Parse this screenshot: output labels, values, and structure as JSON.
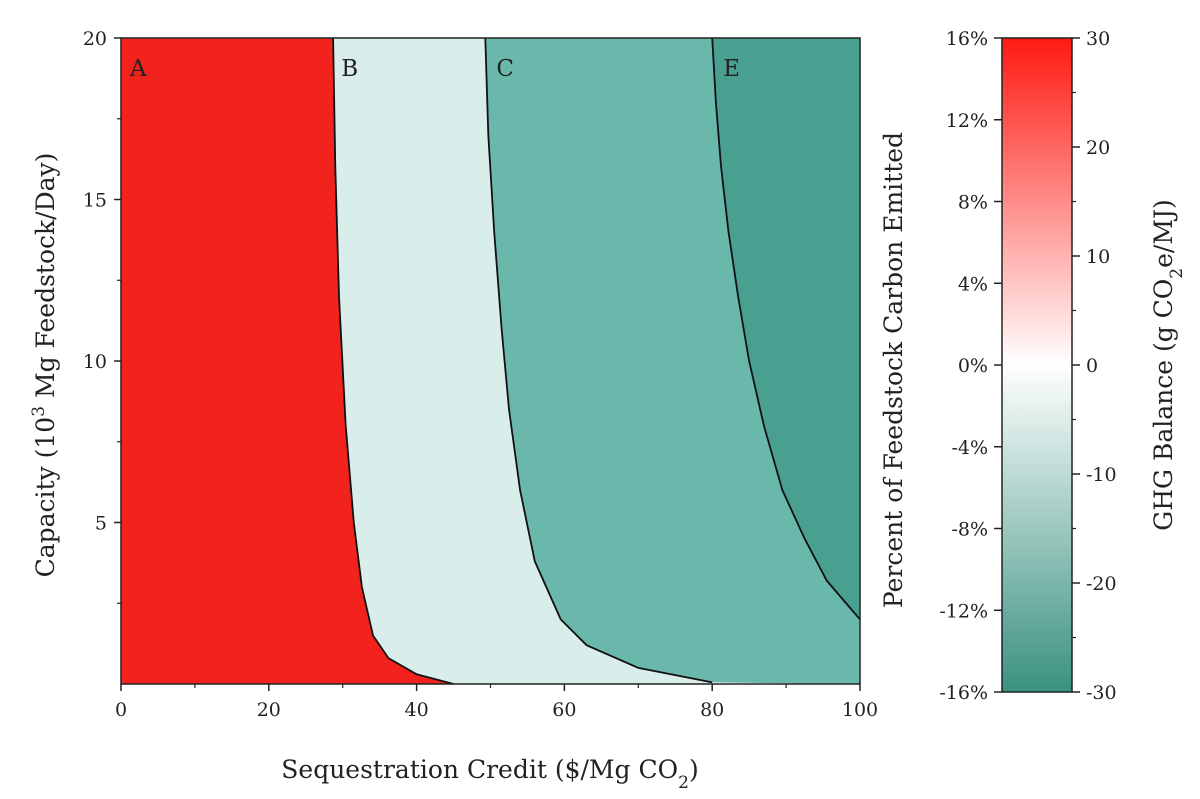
{
  "chart_data": {
    "type": "heatmap",
    "title": "",
    "xlabel_main": "Sequestration Credit ($/Mg CO",
    "xlabel_sub": "2",
    "xlabel_end": ")",
    "ylabel_main": "Capacity (10",
    "ylabel_sup": "3",
    "ylabel_end": " Mg Feedstock/Day)",
    "xlim": [
      0,
      100
    ],
    "ylim": [
      0,
      20
    ],
    "x_ticks": [
      0,
      20,
      40,
      60,
      80,
      100
    ],
    "x_tick_labels": [
      "0",
      "20",
      "40",
      "60",
      "80",
      "100"
    ],
    "y_ticks": [
      5,
      10,
      15,
      20
    ],
    "y_tick_labels": [
      "5",
      "10",
      "15",
      "20"
    ],
    "grid": false,
    "regions": [
      {
        "label": "A",
        "color": "#f2231c",
        "ghg_balance": 30,
        "carbon_emitted_pct": 16
      },
      {
        "label": "B",
        "color": "#d9eeeb",
        "ghg_balance": -5,
        "carbon_emitted_pct": -2.5
      },
      {
        "label": "C",
        "color": "#6ab8ac",
        "ghg_balance": -18,
        "carbon_emitted_pct": -9.5
      },
      {
        "label": "E",
        "color": "#4aa090",
        "ghg_balance": -26,
        "carbon_emitted_pct": -14
      }
    ],
    "boundaries": [
      {
        "between": [
          "A",
          "B"
        ],
        "points": [
          [
            28.7,
            20
          ],
          [
            29.0,
            16
          ],
          [
            29.5,
            12
          ],
          [
            30.4,
            8
          ],
          [
            31.5,
            5
          ],
          [
            32.6,
            3
          ],
          [
            34.1,
            1.5
          ],
          [
            36.2,
            0.8
          ],
          [
            40,
            0.3
          ],
          [
            45,
            0
          ]
        ]
      },
      {
        "between": [
          "B",
          "C"
        ],
        "points": [
          [
            49.3,
            20
          ],
          [
            49.7,
            17
          ],
          [
            50.5,
            14
          ],
          [
            51.5,
            11
          ],
          [
            52.5,
            8.5
          ],
          [
            54,
            6
          ],
          [
            56,
            3.8
          ],
          [
            59.5,
            2
          ],
          [
            63,
            1.2
          ],
          [
            70,
            0.5
          ],
          [
            80,
            0.05
          ]
        ]
      },
      {
        "between": [
          "C",
          "E"
        ],
        "points": [
          [
            80.0,
            20
          ],
          [
            80.5,
            18
          ],
          [
            81.2,
            16
          ],
          [
            82.2,
            14
          ],
          [
            83.5,
            12
          ],
          [
            85.0,
            10
          ],
          [
            87.0,
            8
          ],
          [
            89.5,
            6
          ],
          [
            92.5,
            4.5
          ],
          [
            95.5,
            3.2
          ],
          [
            98.5,
            2.4
          ],
          [
            100,
            2.0
          ]
        ]
      }
    ],
    "colorbar": {
      "right_label": "GHG Balance (g CO",
      "right_label_sub": "2",
      "right_label_end": "e/MJ)",
      "right_ticks": [
        30,
        20,
        10,
        0,
        -10,
        -20,
        -30
      ],
      "right_tick_labels": [
        "30",
        "20",
        "10",
        "0",
        "-10",
        "-20",
        "-30"
      ],
      "left_label": "Percent of Feedstock Carbon Emitted",
      "left_ticks": [
        16,
        12,
        8,
        4,
        0,
        -4,
        -8,
        -12,
        -16
      ],
      "left_tick_labels": [
        "16%",
        "12%",
        "8%",
        "4%",
        "0%",
        "-4%",
        "-8%",
        "-12%",
        "-16%"
      ],
      "range": [
        -30,
        30
      ],
      "colors": {
        "max": "#ff1a12",
        "mid": "#ffffff",
        "min": "#3a9180"
      }
    }
  }
}
